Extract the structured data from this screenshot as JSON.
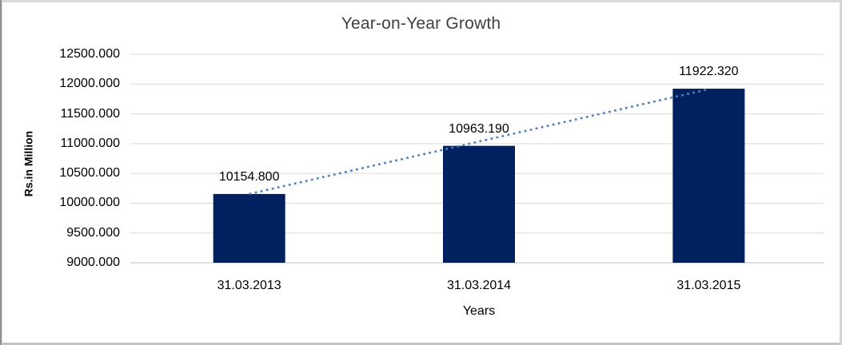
{
  "frame": {
    "background": "#ffffff",
    "border_color_left": "#8f8f8f",
    "border_color_light": "#d9d9d9"
  },
  "chart_data": {
    "type": "bar",
    "title": "Year-on-Year Growth",
    "categories": [
      "31.03.2013",
      "31.03.2014",
      "31.03.2015"
    ],
    "values": [
      10154.8,
      10963.19,
      11922.32
    ],
    "data_labels": [
      "10154.800",
      "10963.190",
      "11922.320"
    ],
    "xlabel": "Years",
    "ylabel": "Rs.in Million",
    "ylim": [
      9000,
      12500
    ],
    "ytick_step": 500,
    "ytick_labels": [
      "9000.000",
      "9500.000",
      "10000.000",
      "10500.000",
      "11000.000",
      "11500.000",
      "12000.000",
      "12500.000"
    ],
    "grid": true,
    "legend": false,
    "bar_color": "#002060",
    "gridline_color": "#d9d9d9",
    "axis_line_color": "#bfbfbf",
    "text_color": "#000000",
    "title_color": "#404040",
    "trendline": {
      "type": "linear",
      "style": "dotted",
      "color": "#4f81bd"
    }
  }
}
